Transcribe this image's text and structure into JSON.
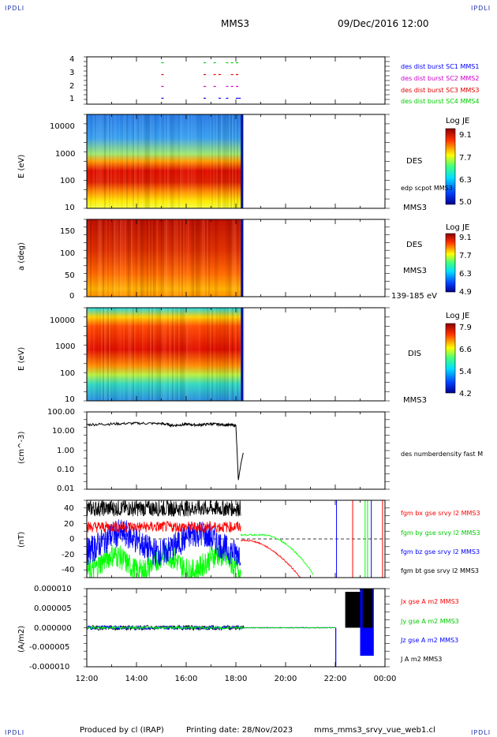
{
  "header": {
    "corner_left_top": "IPDLI",
    "corner_right_top": "IPDLI",
    "corner_left_bottom": "IPDLI",
    "corner_right_bottom": "IPDLI",
    "spacecraft": "MMS3",
    "datetime": "09/Dec/2016 12:00"
  },
  "footer": {
    "produced": "Produced by cl (IRAP)",
    "printing": "Printing date: 28/Nov/2023",
    "file": "mms_mms3_srvy_vue_web1.cl"
  },
  "colors": {
    "mms1": "#0000ff",
    "mms2": "#cc00cc",
    "mms3": "#dd0000",
    "mms4": "#00cc00",
    "bx": "#ff0000",
    "by": "#00ff00",
    "bz": "#0000ff",
    "bt": "#000000"
  },
  "x_axis": {
    "ticks": [
      "12:00",
      "14:00",
      "16:00",
      "18:00",
      "20:00",
      "22:00",
      "00:00"
    ],
    "range_hours": [
      12,
      24
    ]
  },
  "chart_data": [
    {
      "type": "scatter",
      "panel": "burst",
      "ylim": [
        0.5,
        4.5
      ],
      "yticks": [
        "4",
        "3",
        "2",
        "1"
      ],
      "legend": [
        "des dist burst SC1 MMS1",
        "des dist burst SC2 MMS2",
        "des dist burst SC3 MMS3",
        "des dist burst SC4 MMS4"
      ],
      "series": [
        {
          "level": 1,
          "x": [
            15.0,
            16.7,
            17.3,
            17.6,
            18.0,
            18.1
          ],
          "color_key": "mms1"
        },
        {
          "level": 2,
          "x": [
            15.0,
            16.7,
            17.1,
            17.6,
            17.8,
            18.0
          ],
          "color_key": "mms2"
        },
        {
          "level": 3,
          "x": [
            15.0,
            16.7,
            17.1,
            17.3,
            17.8,
            18.0
          ],
          "color_key": "mms3"
        },
        {
          "level": 4,
          "x": [
            15.0,
            16.7,
            17.1,
            17.6,
            17.8,
            18.0
          ],
          "color_key": "mms4"
        }
      ]
    },
    {
      "type": "heatmap",
      "panel": "des_energy",
      "ylabel": "E (eV)",
      "yticks": [
        "10000",
        "1000",
        "100",
        "10"
      ],
      "right_labels": [
        "DES",
        "edp scpot MMS3",
        "MMS3"
      ],
      "colorbar": {
        "title": "Log JE",
        "ticks": [
          "9.1",
          "7.7",
          "6.3",
          "5.0"
        ]
      }
    },
    {
      "type": "heatmap",
      "panel": "des_pitch",
      "ylabel": "a (deg)",
      "yticks": [
        "150",
        "100",
        "50",
        "0"
      ],
      "right_labels": [
        "DES",
        "MMS3",
        "139-185 eV"
      ],
      "colorbar": {
        "title": "Log JE",
        "ticks": [
          "9.1",
          "7.7",
          "6.3",
          "4.9"
        ]
      }
    },
    {
      "type": "heatmap",
      "panel": "dis_energy",
      "ylabel": "E (eV)",
      "yticks": [
        "10000",
        "1000",
        "100",
        "10"
      ],
      "right_labels": [
        "DIS",
        "MMS3"
      ],
      "colorbar": {
        "title": "Log JE",
        "ticks": [
          "7.9",
          "6.6",
          "5.4",
          "4.2"
        ]
      }
    },
    {
      "type": "line",
      "panel": "density",
      "ylabel": "(cm^-3)",
      "yticks": [
        "100.00",
        "10.00",
        "1.00",
        "0.10",
        "0.01"
      ],
      "legend": [
        "des numberdensity fast M"
      ],
      "x": [
        12.0,
        13.0,
        14.0,
        15.0,
        15.5,
        16.0,
        16.5,
        17.0,
        17.5,
        18.0,
        18.1,
        18.2,
        18.3
      ],
      "y": [
        22,
        24,
        26,
        25,
        20,
        23,
        21,
        24,
        22,
        20,
        0.03,
        0.2,
        0.8
      ]
    },
    {
      "type": "line",
      "panel": "fgm",
      "ylabel": "(nT)",
      "yticks": [
        "40",
        "20",
        "0",
        "-20",
        "-40"
      ],
      "ylim": [
        -48,
        48
      ],
      "legend": [
        "fgm bx gse srvy l2 MMS3",
        "fgm by gse srvy l2 MMS3",
        "fgm bz gse srvy l2 MMS3",
        "fgm bt gse srvy l2 MMS3"
      ]
    },
    {
      "type": "line",
      "panel": "current",
      "ylabel": "(A/m2)",
      "yticks": [
        "0.000010",
        "0.000005",
        "0.000000",
        "-0.000005",
        "-0.000010"
      ],
      "ylim": [
        -1e-05,
        1e-05
      ],
      "legend": [
        "Jx gse A m2 MMS3",
        "Jy gse A m2 MMS3",
        "Jz gse A m2 MMS3",
        "J A m2 MMS3"
      ]
    }
  ]
}
